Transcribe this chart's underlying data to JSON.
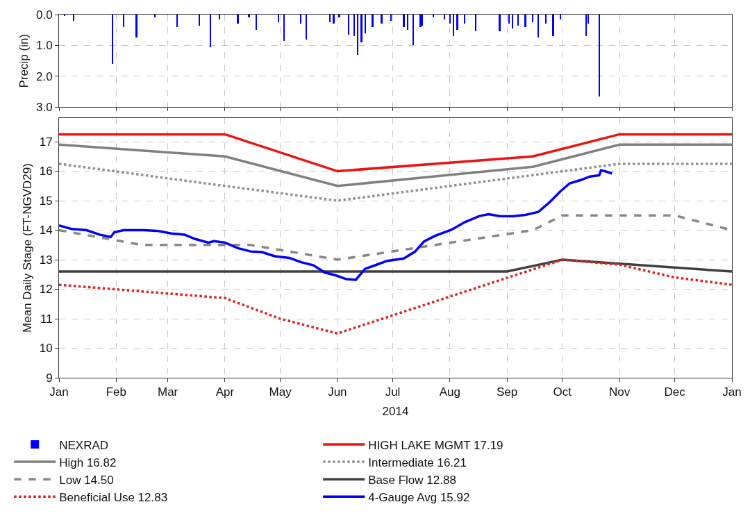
{
  "chart_data": [
    {
      "type": "bar",
      "ylabel": "Precip (in)",
      "xlim": [
        "2014-01-01",
        "2015-01-01"
      ],
      "xticks": [
        {
          "value": "2014-01-01",
          "label": null
        },
        {
          "value": "2014-02-01",
          "label": null
        },
        {
          "value": "2014-03-01",
          "label": null
        },
        {
          "value": "2014-04-01",
          "label": null
        },
        {
          "value": "2014-05-01",
          "label": null
        },
        {
          "value": "2014-06-01",
          "label": null
        },
        {
          "value": "2014-07-01",
          "label": null
        },
        {
          "value": "2014-08-01",
          "label": null
        },
        {
          "value": "2014-09-01",
          "label": null
        },
        {
          "value": "2014-10-01",
          "label": null
        },
        {
          "value": "2014-11-01",
          "label": null
        },
        {
          "value": "2014-12-01",
          "label": null
        },
        {
          "value": "2015-01-01",
          "label": null
        }
      ],
      "ylim": [
        3.0,
        0.0
      ],
      "yticks": [
        {
          "value": 0,
          "label": "0.0"
        },
        {
          "value": 1,
          "label": "1.0"
        },
        {
          "value": 2,
          "label": "2.0"
        },
        {
          "value": 3,
          "label": "3.0"
        }
      ],
      "tick_labels": "y",
      "grid": true,
      "legend": "bottom",
      "series": [
        {
          "name": "NEXRAD",
          "color": "#0000ff",
          "x": [
            "2014-01-04",
            "2014-01-09",
            "2014-01-30",
            "2014-02-05",
            "2014-02-12",
            "2014-02-22",
            "2014-03-06",
            "2014-03-18",
            "2014-03-24",
            "2014-03-29",
            "2014-04-08",
            "2014-04-14",
            "2014-04-18",
            "2014-04-30",
            "2014-05-03",
            "2014-05-12",
            "2014-05-15",
            "2014-05-28",
            "2014-05-30",
            "2014-06-02",
            "2014-06-07",
            "2014-06-10",
            "2014-06-12",
            "2014-06-14",
            "2014-06-16",
            "2014-06-20",
            "2014-06-25",
            "2014-06-30",
            "2014-07-07",
            "2014-07-09",
            "2014-07-12",
            "2014-07-16",
            "2014-07-17",
            "2014-07-23",
            "2014-07-29",
            "2014-08-01",
            "2014-08-03",
            "2014-08-05",
            "2014-08-09",
            "2014-08-15",
            "2014-08-28",
            "2014-09-02",
            "2014-09-04",
            "2014-09-07",
            "2014-09-11",
            "2014-09-15",
            "2014-09-18",
            "2014-09-22",
            "2014-09-26",
            "2014-09-30",
            "2014-10-14",
            "2014-10-15",
            "2014-10-21"
          ],
          "values": [
            0.05,
            0.2,
            1.6,
            0.4,
            0.75,
            0.1,
            0.4,
            0.35,
            1.05,
            0.15,
            0.3,
            0.1,
            0.5,
            0.25,
            0.85,
            0.3,
            0.8,
            0.25,
            0.3,
            0.1,
            0.65,
            0.7,
            1.3,
            0.9,
            0.6,
            0.4,
            0.3,
            0.2,
            0.4,
            0.5,
            1.0,
            0.4,
            0.35,
            0.1,
            0.15,
            0.3,
            0.7,
            0.5,
            0.3,
            0.55,
            0.55,
            0.3,
            0.45,
            0.35,
            0.4,
            0.25,
            0.75,
            0.3,
            0.7,
            0.15,
            0.7,
            0.3,
            2.65
          ]
        }
      ]
    },
    {
      "type": "line",
      "ylabel": "Mean Daily Stage (FT-NGVD29)",
      "xlabel": "2014",
      "xlim": [
        "2014-01-01",
        "2015-01-01"
      ],
      "xticks": [
        {
          "value": "2014-01-01",
          "label": "Jan"
        },
        {
          "value": "2014-02-01",
          "label": "Feb"
        },
        {
          "value": "2014-03-01",
          "label": "Mar"
        },
        {
          "value": "2014-04-01",
          "label": "Apr"
        },
        {
          "value": "2014-05-01",
          "label": "May"
        },
        {
          "value": "2014-06-01",
          "label": "Jun"
        },
        {
          "value": "2014-07-01",
          "label": "Jul"
        },
        {
          "value": "2014-08-01",
          "label": "Aug"
        },
        {
          "value": "2014-09-01",
          "label": "Sep"
        },
        {
          "value": "2014-10-01",
          "label": "Oct"
        },
        {
          "value": "2014-11-01",
          "label": "Nov"
        },
        {
          "value": "2014-12-01",
          "label": "Dec"
        },
        {
          "value": "2015-01-01",
          "label": "Jan"
        }
      ],
      "ylim": [
        9,
        17.8
      ],
      "yticks": [
        9,
        10,
        11,
        12,
        13,
        14,
        15,
        16,
        17
      ],
      "grid": true,
      "legend": "bottom",
      "marker": "none",
      "series": [
        {
          "name": "HIGH LAKE MGMT 17.19",
          "color": "#ee1111",
          "line_style": "solid",
          "x": [
            "2014-01-01",
            "2014-04-01",
            "2014-06-01",
            "2014-09-15",
            "2014-11-01",
            "2015-01-01"
          ],
          "values": [
            17.25,
            17.25,
            16.0,
            16.5,
            17.25,
            17.25
          ]
        },
        {
          "name": "High 16.82",
          "color": "#808080",
          "line_style": "solid",
          "x": [
            "2014-01-01",
            "2014-04-01",
            "2014-06-01",
            "2014-09-15",
            "2014-11-01",
            "2015-01-01"
          ],
          "values": [
            16.9,
            16.5,
            15.5,
            16.15,
            16.9,
            16.9
          ]
        },
        {
          "name": "Intermediate 16.21",
          "color": "#909090",
          "line_style": "dotted",
          "x": [
            "2014-01-01",
            "2014-04-01",
            "2014-06-01",
            "2014-11-01",
            "2015-01-01"
          ],
          "values": [
            16.25,
            15.5,
            15.0,
            16.25,
            16.25
          ]
        },
        {
          "name": "Low 14.50",
          "color": "#888888",
          "line_style": "dashed",
          "x": [
            "2014-01-01",
            "2014-02-15",
            "2014-04-15",
            "2014-06-01",
            "2014-09-15",
            "2014-10-01",
            "2014-12-01",
            "2015-01-01"
          ],
          "values": [
            14.0,
            13.5,
            13.5,
            13.0,
            14.0,
            14.5,
            14.5,
            14.0
          ]
        },
        {
          "name": "Base Flow 12.88",
          "color": "#404040",
          "line_style": "solid",
          "x": [
            "2014-01-01",
            "2014-09-01",
            "2014-10-01",
            "2015-01-01"
          ],
          "values": [
            12.6,
            12.6,
            13.0,
            12.6
          ]
        },
        {
          "name": "Beneficial Use 12.83",
          "color": "#dd2222",
          "line_style": "dotted",
          "x": [
            "2014-01-01",
            "2014-04-01",
            "2014-05-01",
            "2014-06-01",
            "2014-10-01",
            "2014-11-01",
            "2014-12-01",
            "2015-01-01"
          ],
          "values": [
            12.15,
            11.7,
            11.0,
            10.5,
            13.0,
            12.83,
            12.4,
            12.15
          ]
        },
        {
          "name": "4-Gauge Avg 15.92",
          "color": "#0000ff",
          "line_style": "solid",
          "x": [
            "2014-01-01",
            "2014-01-08",
            "2014-01-16",
            "2014-01-23",
            "2014-01-29",
            "2014-01-31",
            "2014-02-05",
            "2014-02-16",
            "2014-02-23",
            "2014-03-03",
            "2014-03-10",
            "2014-03-16",
            "2014-03-23",
            "2014-03-26",
            "2014-04-01",
            "2014-04-08",
            "2014-04-15",
            "2014-04-21",
            "2014-04-28",
            "2014-05-06",
            "2014-05-12",
            "2014-05-19",
            "2014-05-25",
            "2014-05-31",
            "2014-06-06",
            "2014-06-11",
            "2014-06-16",
            "2014-06-21",
            "2014-06-28",
            "2014-07-07",
            "2014-07-13",
            "2014-07-18",
            "2014-07-24",
            "2014-08-02",
            "2014-08-09",
            "2014-08-17",
            "2014-08-22",
            "2014-08-28",
            "2014-09-04",
            "2014-09-11",
            "2014-09-18",
            "2014-09-24",
            "2014-09-30",
            "2014-10-05",
            "2014-10-11",
            "2014-10-16",
            "2014-10-21",
            "2014-10-22",
            "2014-10-24",
            "2014-10-28"
          ],
          "values": [
            14.16,
            14.04,
            14.0,
            13.85,
            13.77,
            13.93,
            14.0,
            14.0,
            13.98,
            13.89,
            13.85,
            13.7,
            13.58,
            13.63,
            13.58,
            13.39,
            13.28,
            13.26,
            13.12,
            13.06,
            12.92,
            12.81,
            12.57,
            12.47,
            12.34,
            12.32,
            12.69,
            12.8,
            12.96,
            13.04,
            13.27,
            13.62,
            13.81,
            14.02,
            14.27,
            14.48,
            14.54,
            14.48,
            14.47,
            14.52,
            14.62,
            14.94,
            15.32,
            15.59,
            15.7,
            15.82,
            15.86,
            16.03,
            16.0,
            15.92
          ]
        }
      ]
    }
  ]
}
